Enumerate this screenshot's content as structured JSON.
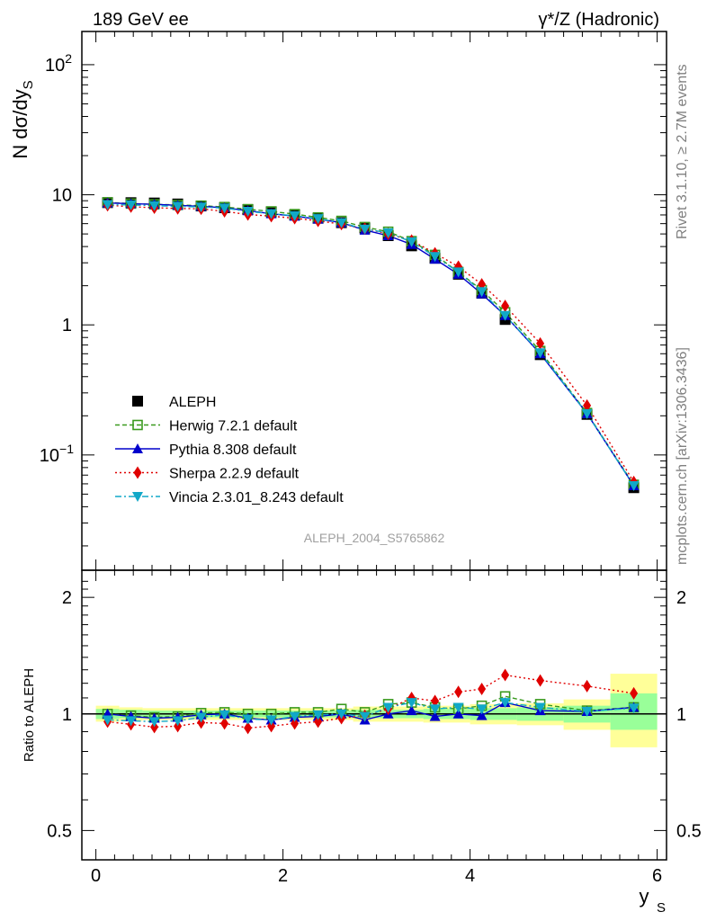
{
  "header": {
    "left": "189 GeV ee",
    "right": "γ*/Z (Hadronic)"
  },
  "side_labels": {
    "rivet": "Rivet 3.1.10, ≥ 2.7M events",
    "mcplots": "mcplots.cern.ch [arXiv:1306.3436]"
  },
  "watermark": "ALEPH_2004_S5765862",
  "colors": {
    "data": "#000000",
    "herwig": "#3a9a1e",
    "pythia": "#0000cc",
    "sherpa": "#e00000",
    "vincia": "#11a8c8",
    "band_inner": "#99ff99",
    "band_outer": "#ffff99"
  },
  "chart_data": [
    {
      "type": "scatter",
      "panel": "main",
      "ylabel": "N dσ/dy",
      "ylabel_sub": "S",
      "yscale": "log",
      "ylim": [
        0.013,
        180
      ],
      "xlim": [
        -0.15,
        6.1
      ],
      "yticks": [
        {
          "v": 0.1,
          "base": "10",
          "exp": "−1"
        },
        {
          "v": 1,
          "base": "1",
          "exp": ""
        },
        {
          "v": 10,
          "base": "10",
          "exp": ""
        },
        {
          "v": 100,
          "base": "10",
          "exp": "2"
        }
      ],
      "x": [
        0.125,
        0.375,
        0.625,
        0.875,
        1.125,
        1.375,
        1.625,
        1.875,
        2.125,
        2.375,
        2.625,
        2.875,
        3.125,
        3.375,
        3.625,
        3.875,
        4.125,
        4.375,
        4.75,
        5.25,
        5.75
      ],
      "series": [
        {
          "name": "ALEPH",
          "key": "data",
          "values": [
            8.7,
            8.7,
            8.65,
            8.5,
            8.2,
            7.95,
            7.7,
            7.4,
            7.0,
            6.6,
            6.1,
            5.55,
            4.85,
            4.05,
            3.25,
            2.45,
            1.75,
            1.1,
            0.59,
            0.205,
            0.056
          ]
        },
        {
          "name": "Herwig 7.2.1 default",
          "key": "herwig",
          "values": [
            8.75,
            8.55,
            8.45,
            8.35,
            8.25,
            8.05,
            7.75,
            7.45,
            7.1,
            6.7,
            6.3,
            5.65,
            5.2,
            4.4,
            3.45,
            2.55,
            1.85,
            1.25,
            0.63,
            0.21,
            0.059
          ]
        },
        {
          "name": "Pythia 8.308 default",
          "key": "pythia",
          "values": [
            8.65,
            8.55,
            8.45,
            8.3,
            8.15,
            7.95,
            7.55,
            7.15,
            6.85,
            6.5,
            6.1,
            5.35,
            4.85,
            4.15,
            3.2,
            2.45,
            1.73,
            1.18,
            0.6,
            0.208,
            0.058
          ]
        },
        {
          "name": "Sherpa 2.2.9 default",
          "key": "sherpa",
          "values": [
            8.3,
            8.1,
            7.95,
            7.85,
            7.8,
            7.45,
            7.05,
            6.85,
            6.6,
            6.3,
            5.95,
            5.5,
            5.0,
            4.45,
            3.55,
            2.8,
            2.05,
            1.4,
            0.72,
            0.24,
            0.062
          ]
        },
        {
          "name": "Vincia 2.3.01_8.243 default",
          "key": "vincia",
          "values": [
            8.4,
            8.35,
            8.25,
            8.15,
            8.05,
            7.9,
            7.45,
            7.15,
            6.9,
            6.55,
            6.1,
            5.45,
            5.1,
            4.35,
            3.35,
            2.55,
            1.8,
            1.18,
            0.61,
            0.208,
            0.058
          ]
        }
      ],
      "legend_placement": "lower-left"
    },
    {
      "type": "scatter",
      "panel": "ratio",
      "ylabel": "Ratio to ALEPH",
      "xlabel": "y",
      "xlabel_sub": "S",
      "yscale": "log",
      "ylim": [
        0.42,
        2.35
      ],
      "xlim": [
        -0.15,
        6.1
      ],
      "xticks": [
        0,
        2,
        4,
        6
      ],
      "yticks": [
        0.5,
        1,
        2
      ],
      "x": [
        0.125,
        0.375,
        0.625,
        0.875,
        1.125,
        1.375,
        1.625,
        1.875,
        2.125,
        2.375,
        2.625,
        2.875,
        3.125,
        3.375,
        3.625,
        3.875,
        4.125,
        4.375,
        4.75,
        5.25,
        5.75
      ],
      "bands": [
        {
          "x0": 0.0,
          "x1": 0.25,
          "lo": 0.97,
          "hi": 1.03,
          "lo2": 0.955,
          "hi2": 1.05
        },
        {
          "x0": 0.25,
          "x1": 0.5,
          "lo": 0.975,
          "hi": 1.025,
          "lo2": 0.96,
          "hi2": 1.04
        },
        {
          "x0": 0.5,
          "x1": 2.75,
          "lo": 0.98,
          "hi": 1.02,
          "lo2": 0.965,
          "hi2": 1.035
        },
        {
          "x0": 2.75,
          "x1": 3.5,
          "lo": 0.975,
          "hi": 1.025,
          "lo2": 0.955,
          "hi2": 1.045
        },
        {
          "x0": 3.5,
          "x1": 4.0,
          "lo": 0.97,
          "hi": 1.03,
          "lo2": 0.95,
          "hi2": 1.05
        },
        {
          "x0": 4.0,
          "x1": 4.5,
          "lo": 0.965,
          "hi": 1.035,
          "lo2": 0.94,
          "hi2": 1.06
        },
        {
          "x0": 4.5,
          "x1": 5.0,
          "lo": 0.96,
          "hi": 1.04,
          "lo2": 0.935,
          "hi2": 1.065
        },
        {
          "x0": 5.0,
          "x1": 5.5,
          "lo": 0.95,
          "hi": 1.05,
          "lo2": 0.91,
          "hi2": 1.09
        },
        {
          "x0": 5.5,
          "x1": 6.0,
          "lo": 0.91,
          "hi": 1.13,
          "lo2": 0.82,
          "hi2": 1.27
        }
      ],
      "series": [
        {
          "name": "Herwig 7.2.1 default",
          "key": "herwig",
          "values": [
            1.0,
            0.99,
            0.98,
            0.985,
            1.005,
            1.01,
            1.0,
            1.0,
            1.01,
            1.01,
            1.03,
            1.01,
            1.06,
            1.07,
            1.04,
            1.03,
            1.05,
            1.11,
            1.06,
            1.02,
            1.04
          ]
        },
        {
          "name": "Pythia 8.308 default",
          "key": "pythia",
          "values": [
            1.0,
            0.985,
            0.975,
            0.98,
            0.995,
            1.0,
            0.975,
            0.965,
            0.98,
            0.985,
            1.0,
            0.965,
            1.0,
            1.02,
            0.985,
            1.0,
            0.99,
            1.07,
            1.02,
            1.015,
            1.04
          ]
        },
        {
          "name": "Sherpa 2.2.9 default",
          "key": "sherpa",
          "values": [
            0.955,
            0.94,
            0.925,
            0.93,
            0.95,
            0.945,
            0.92,
            0.93,
            0.945,
            0.955,
            0.975,
            0.99,
            1.03,
            1.1,
            1.08,
            1.14,
            1.16,
            1.26,
            1.22,
            1.18,
            1.13
          ]
        },
        {
          "name": "Vincia 2.3.01_8.243 default",
          "key": "vincia",
          "values": [
            0.965,
            0.96,
            0.955,
            0.96,
            0.98,
            0.995,
            0.97,
            0.965,
            0.985,
            0.995,
            1.0,
            0.985,
            1.04,
            1.07,
            1.03,
            1.04,
            1.03,
            1.07,
            1.04,
            1.015,
            1.035
          ]
        }
      ]
    }
  ]
}
